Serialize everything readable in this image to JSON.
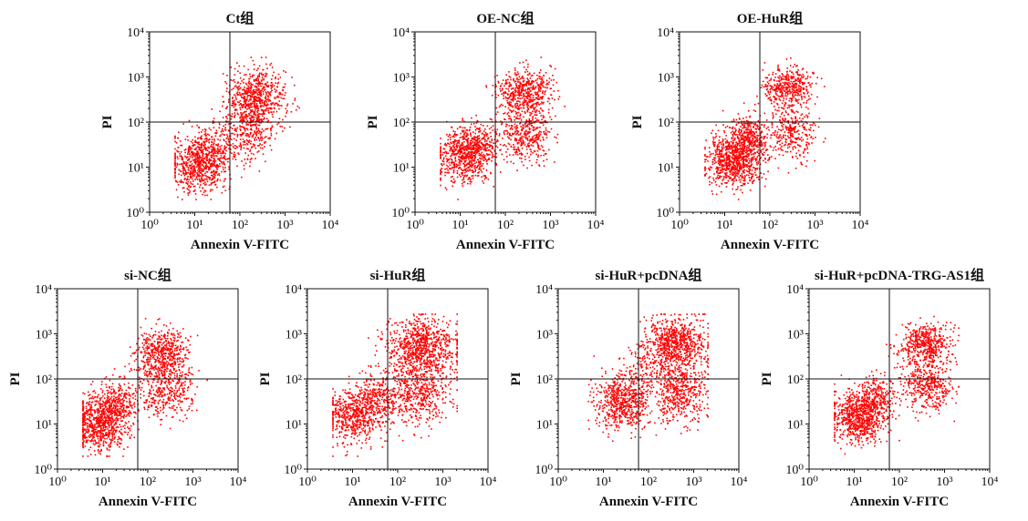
{
  "figure": {
    "panel_count": 7,
    "point_color": "#ff0000",
    "axis_color": "#111111",
    "quadrant_line_color": "#111111",
    "background_color": "#ffffff"
  },
  "chart_data": [
    {
      "type": "scatter",
      "title": "Ct组",
      "xlabel": "Annexin V-FITC",
      "ylabel": "PI",
      "xscale": "log",
      "yscale": "log",
      "xlim": [
        1,
        10000
      ],
      "ylim": [
        1,
        10000
      ],
      "tick_labels": [
        "10⁰",
        "10¹",
        "10²",
        "10³",
        "10⁴"
      ],
      "quadrant_gate": {
        "x": 60,
        "y": 100
      },
      "clusters": [
        {
          "x": 12,
          "y": 12,
          "spread": [
            0.32,
            0.32
          ],
          "n": 650
        },
        {
          "x": 28,
          "y": 28,
          "spread": [
            0.25,
            0.25
          ],
          "n": 200
        },
        {
          "x": 220,
          "y": 350,
          "spread": [
            0.33,
            0.32
          ],
          "n": 650
        },
        {
          "x": 150,
          "y": 60,
          "spread": [
            0.3,
            0.33
          ],
          "n": 280
        }
      ],
      "grid": false
    },
    {
      "type": "scatter",
      "title": "OE-NC组",
      "xlabel": "Annexin V-FITC",
      "ylabel": "PI",
      "xscale": "log",
      "yscale": "log",
      "xlim": [
        1,
        10000
      ],
      "ylim": [
        1,
        10000
      ],
      "tick_labels": [
        "10⁰",
        "10¹",
        "10²",
        "10³",
        "10⁴"
      ],
      "quadrant_gate": {
        "x": 60,
        "y": 100
      },
      "clusters": [
        {
          "x": 12,
          "y": 18,
          "spread": [
            0.3,
            0.3
          ],
          "n": 650
        },
        {
          "x": 30,
          "y": 40,
          "spread": [
            0.23,
            0.23
          ],
          "n": 200
        },
        {
          "x": 250,
          "y": 500,
          "spread": [
            0.3,
            0.25
          ],
          "n": 500
        },
        {
          "x": 300,
          "y": 60,
          "spread": [
            0.28,
            0.3
          ],
          "n": 420
        }
      ],
      "grid": false
    },
    {
      "type": "scatter",
      "title": "OE-HuR组",
      "xlabel": "Annexin V-FITC",
      "ylabel": "PI",
      "xscale": "log",
      "yscale": "log",
      "xlim": [
        1,
        10000
      ],
      "ylim": [
        1,
        10000
      ],
      "tick_labels": [
        "10⁰",
        "10¹",
        "10²",
        "10³",
        "10⁴"
      ],
      "quadrant_gate": {
        "x": 60,
        "y": 100
      },
      "clusters": [
        {
          "x": 15,
          "y": 15,
          "spread": [
            0.3,
            0.28
          ],
          "n": 800
        },
        {
          "x": 35,
          "y": 45,
          "spread": [
            0.2,
            0.25
          ],
          "n": 350
        },
        {
          "x": 250,
          "y": 600,
          "spread": [
            0.28,
            0.22
          ],
          "n": 420
        },
        {
          "x": 300,
          "y": 60,
          "spread": [
            0.25,
            0.3
          ],
          "n": 300
        }
      ],
      "grid": false
    },
    {
      "type": "scatter",
      "title": "si-NC组",
      "xlabel": "Annexin V-FITC",
      "ylabel": "PI",
      "xscale": "log",
      "yscale": "log",
      "xlim": [
        1,
        10000
      ],
      "ylim": [
        1,
        10000
      ],
      "tick_labels": [
        "10⁰",
        "10¹",
        "10²",
        "10³",
        "10⁴"
      ],
      "quadrant_gate": {
        "x": 60,
        "y": 100
      },
      "clusters": [
        {
          "x": 8,
          "y": 10,
          "spread": [
            0.3,
            0.3
          ],
          "n": 700
        },
        {
          "x": 20,
          "y": 30,
          "spread": [
            0.25,
            0.25
          ],
          "n": 300
        },
        {
          "x": 200,
          "y": 400,
          "spread": [
            0.3,
            0.25
          ],
          "n": 500
        },
        {
          "x": 250,
          "y": 60,
          "spread": [
            0.3,
            0.3
          ],
          "n": 380
        }
      ],
      "grid": false
    },
    {
      "type": "scatter",
      "title": "si-HuR组",
      "xlabel": "Annexin V-FITC",
      "ylabel": "PI",
      "xscale": "log",
      "yscale": "log",
      "xlim": [
        1,
        10000
      ],
      "ylim": [
        1,
        10000
      ],
      "tick_labels": [
        "10⁰",
        "10¹",
        "10²",
        "10³",
        "10⁴"
      ],
      "quadrant_gate": {
        "x": 60,
        "y": 100
      },
      "clusters": [
        {
          "x": 10,
          "y": 15,
          "spread": [
            0.33,
            0.3
          ],
          "n": 550
        },
        {
          "x": 30,
          "y": 40,
          "spread": [
            0.22,
            0.25
          ],
          "n": 250
        },
        {
          "x": 300,
          "y": 500,
          "spread": [
            0.4,
            0.35
          ],
          "n": 850
        },
        {
          "x": 250,
          "y": 50,
          "spread": [
            0.38,
            0.35
          ],
          "n": 500
        }
      ],
      "grid": false
    },
    {
      "type": "scatter",
      "title": "si-HuR+pcDNA组",
      "xlabel": "Annexin V-FITC",
      "ylabel": "PI",
      "xscale": "log",
      "yscale": "log",
      "xlim": [
        1,
        10000
      ],
      "ylim": [
        1,
        10000
      ],
      "tick_labels": [
        "10⁰",
        "10¹",
        "10²",
        "10³",
        "10⁴"
      ],
      "quadrant_gate": {
        "x": 60,
        "y": 100
      },
      "clusters": [
        {
          "x": 25,
          "y": 30,
          "spread": [
            0.3,
            0.3
          ],
          "n": 600
        },
        {
          "x": 400,
          "y": 600,
          "spread": [
            0.35,
            0.3
          ],
          "n": 750
        },
        {
          "x": 500,
          "y": 50,
          "spread": [
            0.3,
            0.35
          ],
          "n": 450
        },
        {
          "x": 100,
          "y": 150,
          "spread": [
            0.35,
            0.3
          ],
          "n": 200
        }
      ],
      "grid": false
    },
    {
      "type": "scatter",
      "title": "si-HuR+pcDNA-TRG-AS1组",
      "xlabel": "Annexin V-FITC",
      "ylabel": "PI",
      "xscale": "log",
      "yscale": "log",
      "xlim": [
        1,
        10000
      ],
      "ylim": [
        1,
        10000
      ],
      "tick_labels": [
        "10⁰",
        "10¹",
        "10²",
        "10³",
        "10⁴"
      ],
      "quadrant_gate": {
        "x": 60,
        "y": 100
      },
      "clusters": [
        {
          "x": 12,
          "y": 15,
          "spread": [
            0.3,
            0.27
          ],
          "n": 750
        },
        {
          "x": 30,
          "y": 40,
          "spread": [
            0.22,
            0.23
          ],
          "n": 250
        },
        {
          "x": 350,
          "y": 600,
          "spread": [
            0.28,
            0.22
          ],
          "n": 500
        },
        {
          "x": 400,
          "y": 70,
          "spread": [
            0.28,
            0.27
          ],
          "n": 400
        }
      ],
      "grid": false
    }
  ]
}
